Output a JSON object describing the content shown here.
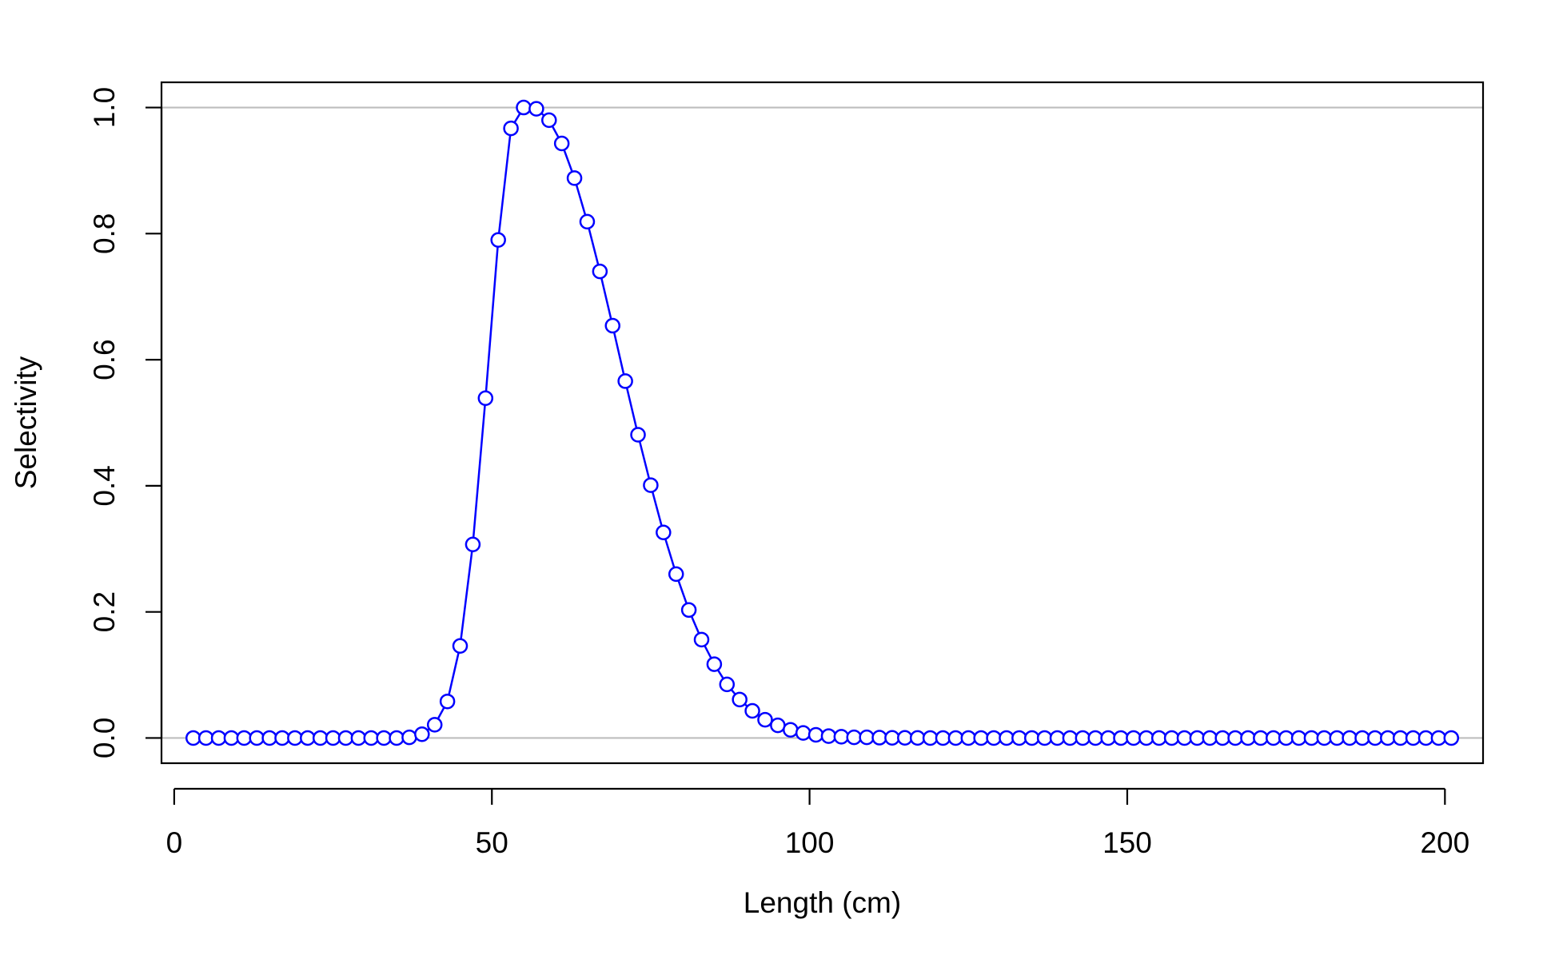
{
  "chart_data": {
    "type": "line",
    "title": "",
    "xlabel": "Length (cm)",
    "ylabel": "Selectivity",
    "xlim": [
      -2,
      206
    ],
    "ylim": [
      -0.04,
      1.04
    ],
    "x_ticks": [
      0,
      50,
      100,
      150,
      200
    ],
    "x_tick_labels": [
      "0",
      "50",
      "100",
      "150",
      "200"
    ],
    "y_ticks": [
      0,
      0.2,
      0.4,
      0.6,
      0.8,
      1.0
    ],
    "y_tick_labels": [
      "0.0",
      "0.2",
      "0.4",
      "0.6",
      "0.8",
      "1.0"
    ],
    "reference_lines_y": [
      0,
      1
    ],
    "colors": {
      "series": "#0000ff",
      "reference_line": "#bebebe",
      "axis": "#000000"
    },
    "series": [
      {
        "x": [
          3,
          5,
          7,
          9,
          11,
          13,
          15,
          17,
          19,
          21,
          23,
          25,
          27,
          29,
          31,
          33,
          35,
          37,
          39,
          41,
          43,
          45,
          47,
          49,
          51,
          53,
          55,
          57,
          59,
          61,
          63,
          65,
          67,
          69,
          71,
          73,
          75,
          77,
          79,
          81,
          83,
          85,
          87,
          89,
          91,
          93,
          95,
          97,
          99,
          101,
          103,
          105,
          107,
          109,
          111,
          113,
          115,
          117,
          119,
          121,
          123,
          125,
          127,
          129,
          131,
          133,
          135,
          137,
          139,
          141,
          143,
          145,
          147,
          149,
          151,
          153,
          155,
          157,
          159,
          161,
          163,
          165,
          167,
          169,
          171,
          173,
          175,
          177,
          179,
          181,
          183,
          185,
          187,
          189,
          191,
          193,
          195,
          197,
          199,
          201
        ],
        "values": [
          0,
          0,
          0,
          0,
          0,
          0,
          0,
          0,
          0,
          0,
          0,
          0,
          0,
          0,
          0,
          0,
          0,
          0.001,
          0.006,
          0.021,
          0.058,
          0.146,
          0.307,
          0.539,
          0.79,
          0.967,
          1.0,
          0.998,
          0.98,
          0.943,
          0.888,
          0.819,
          0.74,
          0.654,
          0.566,
          0.481,
          0.401,
          0.326,
          0.26,
          0.203,
          0.156,
          0.117,
          0.085,
          0.061,
          0.043,
          0.029,
          0.02,
          0.013,
          0.008,
          0.005,
          0.003,
          0.002,
          0.001,
          0.001,
          0.0005,
          0.0003,
          0.0002,
          0.0001,
          0,
          0,
          0,
          0,
          0,
          0,
          0,
          0,
          0,
          0,
          0,
          0,
          0,
          0,
          0,
          0,
          0,
          0,
          0,
          0,
          0,
          0,
          0,
          0,
          0,
          0,
          0,
          0,
          0,
          0,
          0,
          0,
          0,
          0,
          0,
          0,
          0,
          0,
          0,
          0,
          0,
          0
        ]
      }
    ]
  }
}
